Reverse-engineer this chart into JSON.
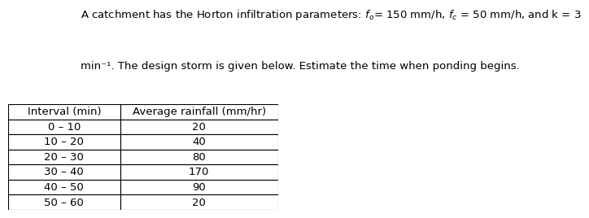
{
  "title_line1": "A catchment has the Horton infiltration parameters: $f_o$= 150 mm/h, $f_c$ = 50 mm/h, and k = 3",
  "title_line2": "min⁻¹. The design storm is given below. Estimate the time when ponding begins.",
  "col1_header": "Interval (min)",
  "col2_header": "Average rainfall (mm/hr)",
  "intervals": [
    "0 – 10",
    "10 – 20",
    "20 – 30",
    "30 – 40",
    "40 – 50",
    "50 – 60"
  ],
  "rainfalls": [
    "20",
    "40",
    "80",
    "170",
    "90",
    "20"
  ],
  "font_size": 9.5,
  "title_font_size": 9.5,
  "background_color": "#ffffff",
  "text_color": "#000000"
}
